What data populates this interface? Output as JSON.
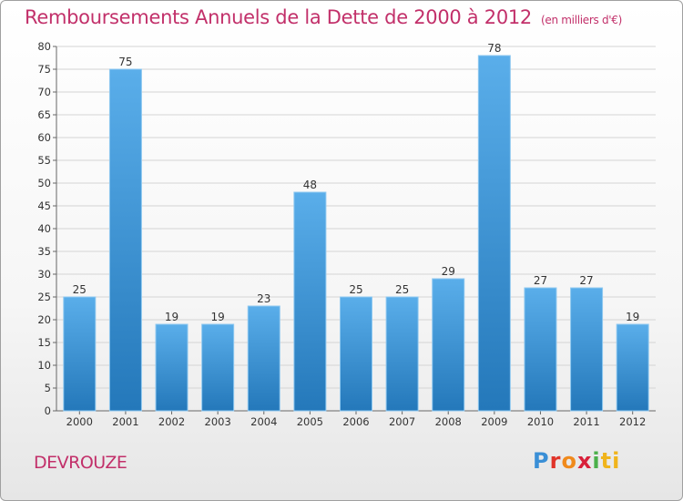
{
  "header": {
    "title": "Remboursements Annuels de la Dette de 2000 à 2012",
    "subtitle": "(en milliers d'€)"
  },
  "footer": {
    "place": "DEVROUZE",
    "logo_letters": [
      "P",
      "r",
      "o",
      "x",
      "i",
      "ti"
    ]
  },
  "chart_data": {
    "type": "bar",
    "title": "Remboursements Annuels de la Dette de 2000 à 2012",
    "subtitle": "(en milliers d'€)",
    "categories": [
      "2000",
      "2001",
      "2002",
      "2003",
      "2004",
      "2005",
      "2006",
      "2007",
      "2008",
      "2009",
      "2010",
      "2011",
      "2012"
    ],
    "values": [
      25,
      75,
      19,
      19,
      23,
      48,
      25,
      25,
      29,
      78,
      27,
      27,
      19
    ],
    "ylim": [
      0,
      80
    ],
    "yticks": [
      0,
      5,
      10,
      15,
      20,
      25,
      30,
      35,
      40,
      45,
      50,
      55,
      60,
      65,
      70,
      75,
      80
    ],
    "grid": true,
    "bar_color": "#3d98dc",
    "grid_color": "#d4d4d4"
  }
}
